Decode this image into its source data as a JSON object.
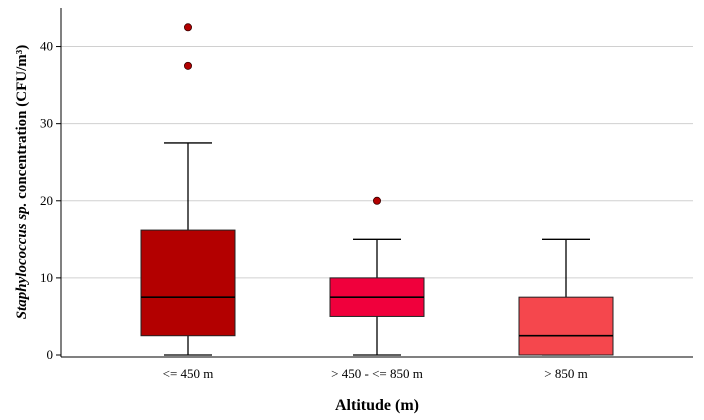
{
  "chart_data": {
    "type": "boxplot",
    "xlabel": "Altitude (m)",
    "ylabel": {
      "italic_part": "Staphylococcus sp.",
      "normal_part": " concentration (CFU/m³)"
    },
    "ylim": [
      0,
      45
    ],
    "yticks": [
      0,
      10,
      20,
      30,
      40
    ],
    "grid": "horizontal",
    "categories": [
      "<= 450 m",
      "> 450 - <= 850 m",
      "> 850 m"
    ],
    "boxes": [
      {
        "category": "<= 450 m",
        "whisker_low": 0,
        "q1": 2.5,
        "median": 7.5,
        "q3": 16.2,
        "whisker_high": 27.5,
        "outliers": [
          37.5,
          42.5
        ],
        "color": "#b30000"
      },
      {
        "category": "> 450 - <= 850 m",
        "whisker_low": 0,
        "q1": 5,
        "median": 7.5,
        "q3": 10,
        "whisker_high": 15,
        "outliers": [
          20
        ],
        "color": "#f0003c"
      },
      {
        "category": "> 850 m",
        "whisker_low": 0,
        "q1": 0,
        "median": 2.5,
        "q3": 7.5,
        "whisker_high": 15,
        "outliers": [],
        "color": "#f5474d"
      }
    ],
    "outlier_color": "#b30000"
  }
}
